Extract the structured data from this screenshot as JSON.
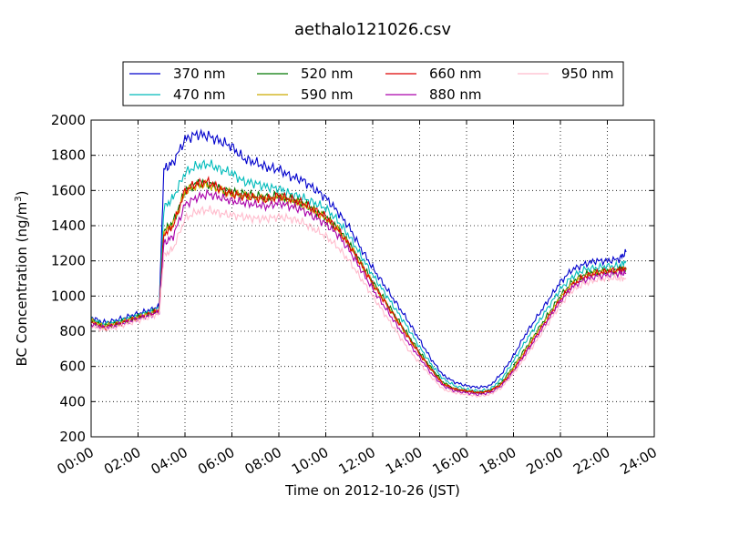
{
  "chart_data": {
    "type": "line",
    "title": "aethalo121026.csv",
    "xlabel": "Time on 2012-10-26 (JST)",
    "ylabel_main": "BC Concentration (ng/m",
    "ylabel_sup": "3",
    "ylabel_close": ")",
    "xlim": [
      0,
      24
    ],
    "ylim": [
      200,
      2000
    ],
    "grid": true,
    "legend_position": "top",
    "x_ticks": [
      {
        "value": 0,
        "label": "00:00"
      },
      {
        "value": 2,
        "label": "02:00"
      },
      {
        "value": 4,
        "label": "04:00"
      },
      {
        "value": 6,
        "label": "06:00"
      },
      {
        "value": 8,
        "label": "08:00"
      },
      {
        "value": 10,
        "label": "10:00"
      },
      {
        "value": 12,
        "label": "12:00"
      },
      {
        "value": 14,
        "label": "14:00"
      },
      {
        "value": 16,
        "label": "16:00"
      },
      {
        "value": 18,
        "label": "18:00"
      },
      {
        "value": 20,
        "label": "20:00"
      },
      {
        "value": 22,
        "label": "22:00"
      },
      {
        "value": 24,
        "label": "24:00"
      }
    ],
    "y_ticks": [
      200,
      400,
      600,
      800,
      1000,
      1200,
      1400,
      1600,
      1800,
      2000
    ],
    "x": [
      0,
      0.5,
      1,
      1.5,
      2,
      2.5,
      2.9,
      3.1,
      3.5,
      4,
      4.5,
      5,
      5.5,
      6,
      6.5,
      7,
      7.5,
      8,
      8.5,
      9,
      9.5,
      10,
      10.5,
      11,
      11.5,
      12,
      12.5,
      13,
      13.5,
      14,
      14.5,
      15,
      15.5,
      16,
      16.5,
      17,
      17.5,
      18,
      18.5,
      19,
      19.5,
      20,
      20.5,
      21,
      21.5,
      22,
      22.5,
      22.8
    ],
    "series": [
      {
        "name": "370 nm",
        "color": "#0000cc",
        "values": [
          880,
          850,
          860,
          880,
          900,
          920,
          940,
          1720,
          1760,
          1890,
          1920,
          1910,
          1880,
          1850,
          1780,
          1760,
          1730,
          1720,
          1680,
          1660,
          1610,
          1560,
          1480,
          1390,
          1270,
          1160,
          1060,
          960,
          860,
          750,
          640,
          550,
          510,
          490,
          480,
          490,
          560,
          660,
          780,
          880,
          980,
          1080,
          1150,
          1180,
          1200,
          1200,
          1210,
          1250
        ]
      },
      {
        "name": "470 nm",
        "color": "#00bbbb",
        "values": [
          870,
          840,
          850,
          870,
          890,
          910,
          930,
          1500,
          1560,
          1700,
          1740,
          1750,
          1720,
          1700,
          1650,
          1640,
          1620,
          1610,
          1580,
          1560,
          1530,
          1500,
          1430,
          1340,
          1230,
          1120,
          1020,
          920,
          820,
          710,
          610,
          530,
          490,
          470,
          460,
          470,
          530,
          630,
          740,
          840,
          940,
          1040,
          1110,
          1150,
          1160,
          1170,
          1170,
          1200
        ]
      },
      {
        "name": "520 nm",
        "color": "#007700",
        "values": [
          860,
          830,
          840,
          860,
          880,
          900,
          920,
          1370,
          1420,
          1600,
          1640,
          1640,
          1610,
          1590,
          1580,
          1570,
          1560,
          1570,
          1550,
          1530,
          1490,
          1450,
          1390,
          1300,
          1190,
          1080,
          980,
          880,
          780,
          680,
          590,
          510,
          470,
          460,
          450,
          460,
          510,
          600,
          700,
          800,
          900,
          1000,
          1080,
          1120,
          1140,
          1140,
          1150,
          1160
        ]
      },
      {
        "name": "590 nm",
        "color": "#ccaa00",
        "values": [
          860,
          830,
          840,
          860,
          880,
          900,
          920,
          1360,
          1410,
          1590,
          1630,
          1630,
          1600,
          1580,
          1570,
          1560,
          1550,
          1560,
          1540,
          1520,
          1480,
          1440,
          1380,
          1290,
          1180,
          1070,
          970,
          870,
          770,
          670,
          580,
          500,
          470,
          460,
          450,
          460,
          500,
          590,
          690,
          790,
          890,
          990,
          1070,
          1110,
          1130,
          1140,
          1140,
          1150
        ]
      },
      {
        "name": "660 nm",
        "color": "#dd0000",
        "values": [
          850,
          820,
          835,
          855,
          875,
          895,
          915,
          1350,
          1400,
          1600,
          1640,
          1650,
          1610,
          1580,
          1570,
          1560,
          1550,
          1570,
          1550,
          1530,
          1490,
          1450,
          1380,
          1290,
          1180,
          1070,
          970,
          870,
          770,
          670,
          580,
          500,
          470,
          460,
          450,
          460,
          500,
          580,
          680,
          780,
          880,
          980,
          1060,
          1110,
          1130,
          1140,
          1150,
          1150
        ]
      },
      {
        "name": "880 nm",
        "color": "#aa00aa",
        "values": [
          840,
          820,
          830,
          850,
          870,
          890,
          910,
          1300,
          1340,
          1520,
          1560,
          1580,
          1560,
          1540,
          1530,
          1520,
          1510,
          1530,
          1510,
          1490,
          1450,
          1410,
          1350,
          1260,
          1150,
          1040,
          940,
          840,
          740,
          650,
          560,
          490,
          460,
          450,
          440,
          450,
          490,
          570,
          670,
          770,
          870,
          970,
          1050,
          1090,
          1110,
          1120,
          1130,
          1130
        ]
      },
      {
        "name": "950 nm",
        "color": "#ffbbcc",
        "values": [
          830,
          810,
          820,
          840,
          860,
          880,
          900,
          1230,
          1270,
          1440,
          1480,
          1490,
          1470,
          1460,
          1450,
          1440,
          1440,
          1450,
          1440,
          1420,
          1380,
          1340,
          1280,
          1200,
          1100,
          1000,
          900,
          800,
          700,
          620,
          540,
          470,
          450,
          440,
          430,
          440,
          480,
          560,
          650,
          750,
          850,
          950,
          1030,
          1070,
          1090,
          1100,
          1100,
          1100
        ]
      }
    ]
  }
}
